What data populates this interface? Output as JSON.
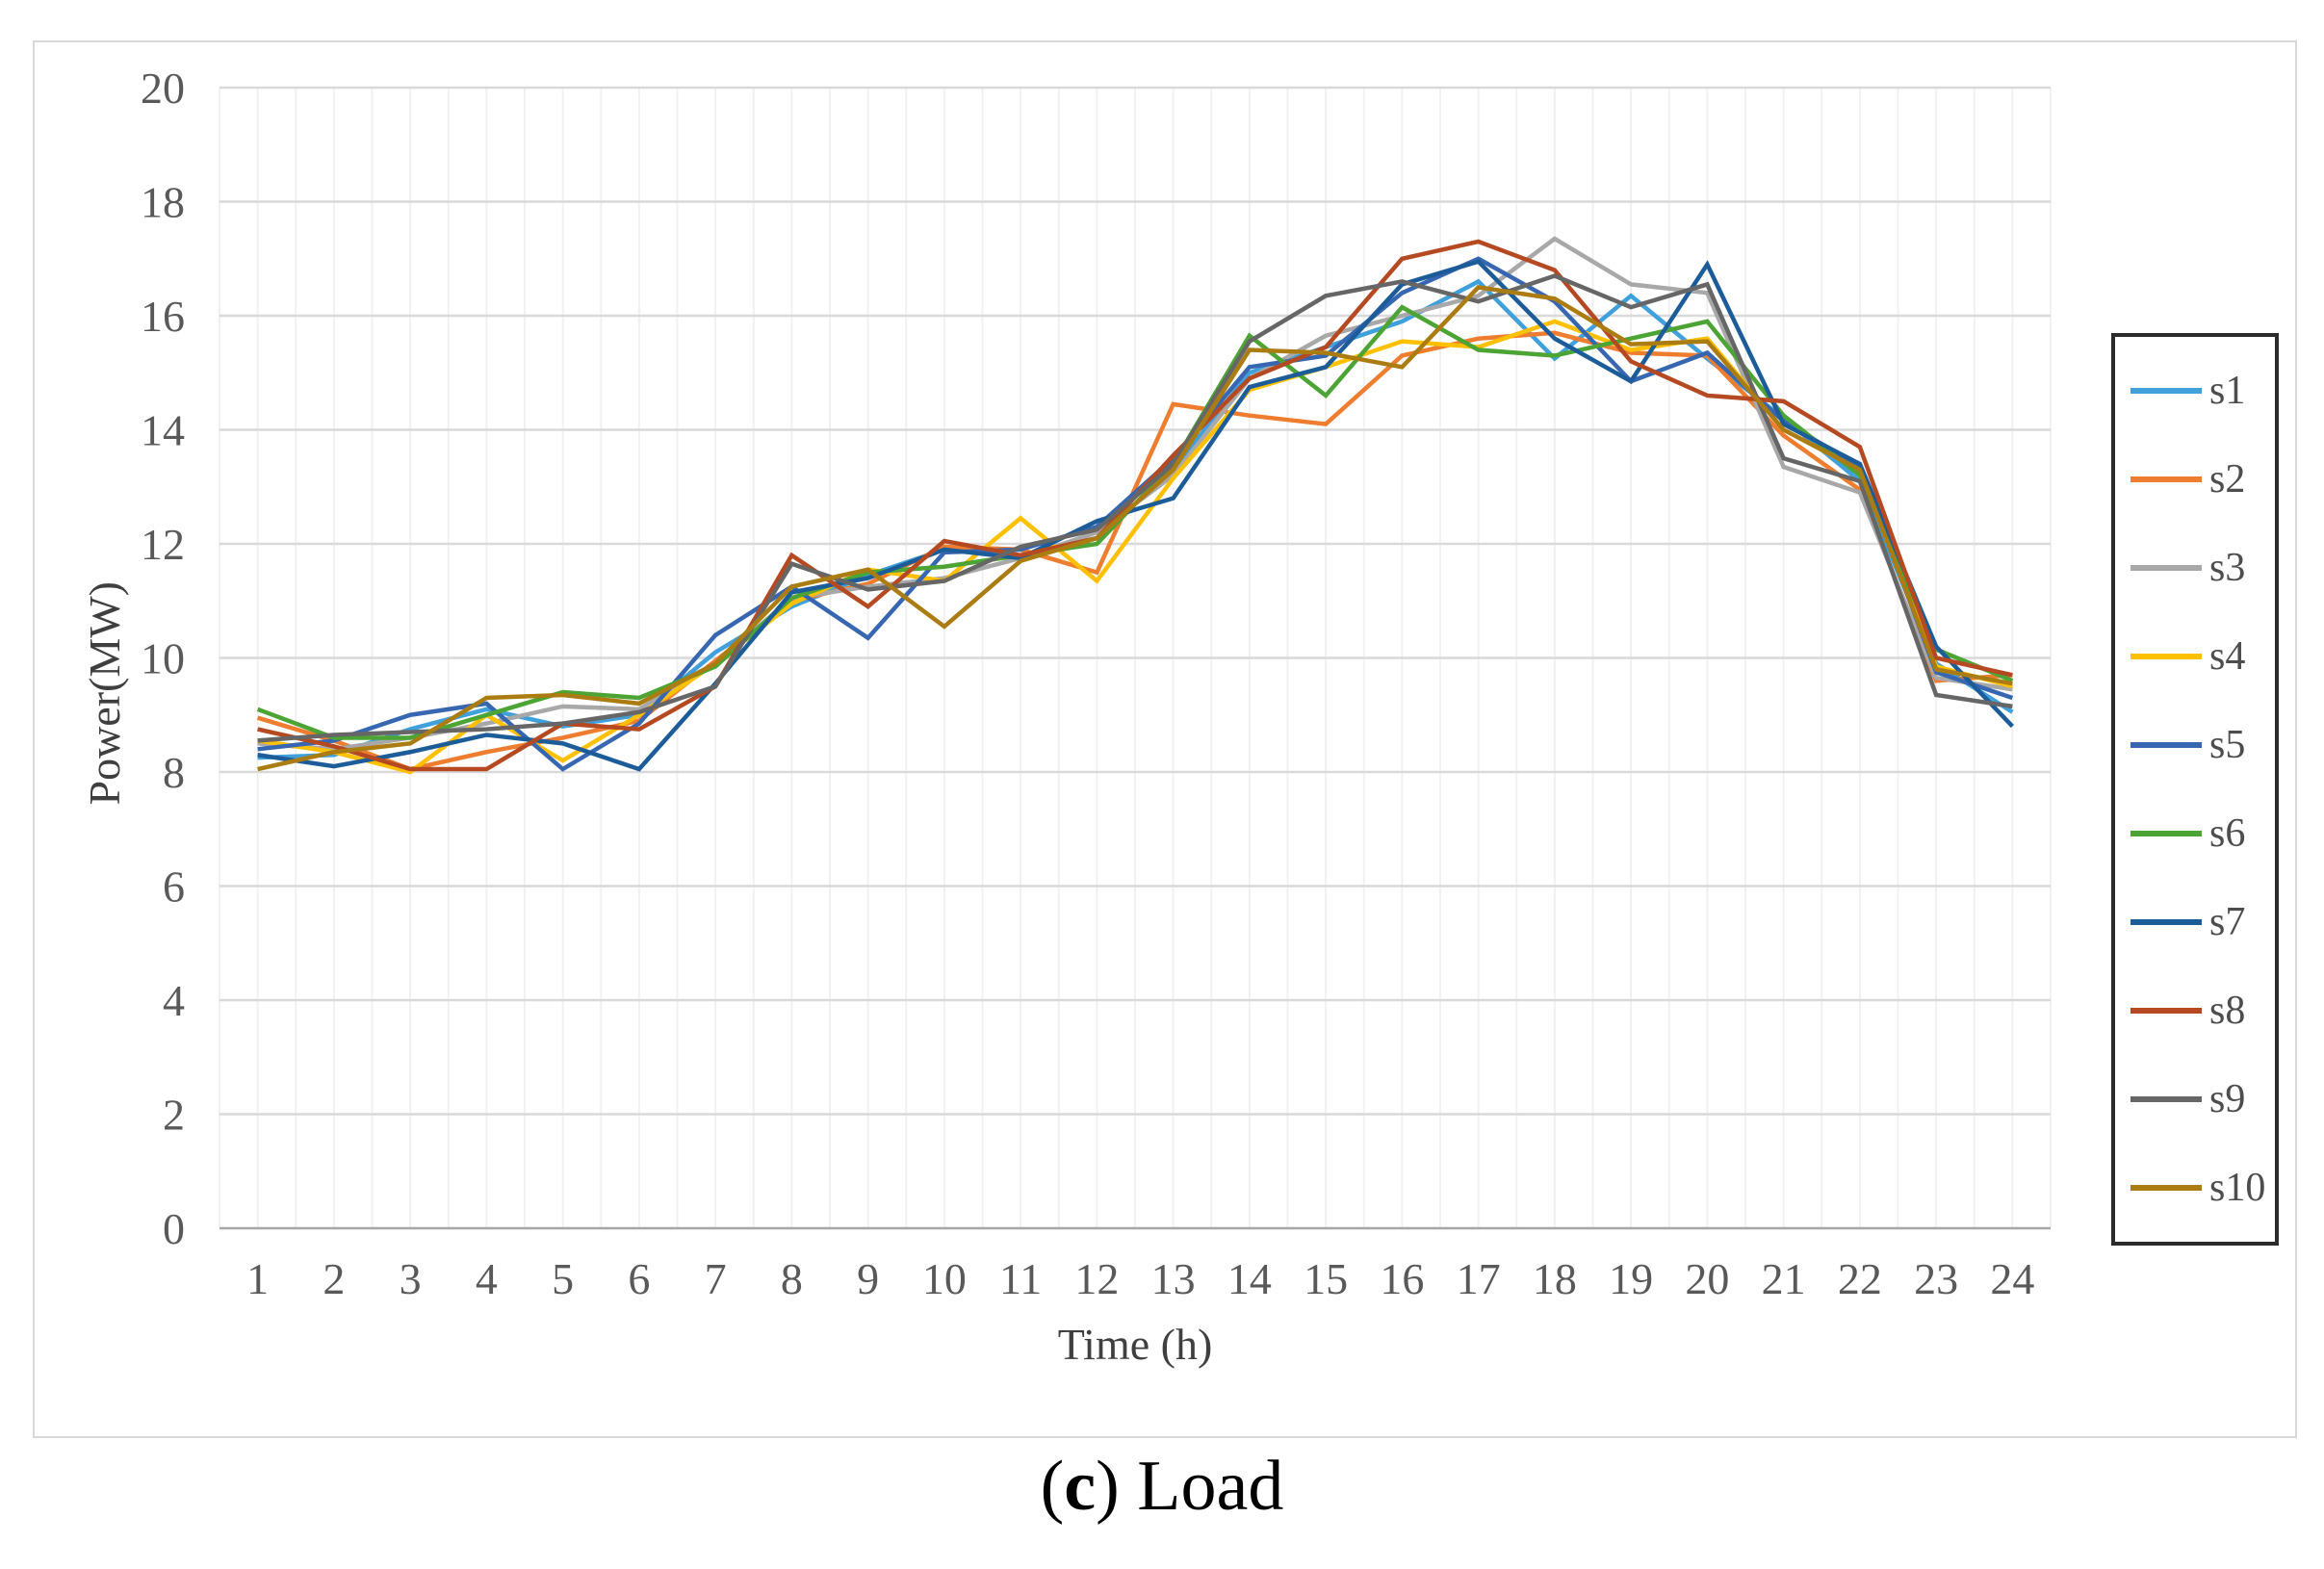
{
  "figure": {
    "caption": {
      "open": "(",
      "letter": "c",
      "rest": ") Load"
    }
  },
  "chart_data": {
    "type": "line",
    "title": "",
    "xlabel": "Time (h)",
    "ylabel": "Power(MW)",
    "x": [
      1,
      2,
      3,
      4,
      5,
      6,
      7,
      8,
      9,
      10,
      11,
      12,
      13,
      14,
      15,
      16,
      17,
      18,
      19,
      20,
      21,
      22,
      23,
      24
    ],
    "ylim": [
      0,
      20
    ],
    "ytick_step": 2,
    "grid": {
      "horizontal_major": true,
      "vertical_minor": true
    },
    "legend_position": "right",
    "colors": {
      "gridline_major": "#d9d9d9",
      "gridline_minor": "#f1f1f1",
      "axis_line": "#a6a6a6",
      "tick_label": "#595959",
      "axis_title": "#3f3f3f",
      "legend_border": "#2b2b2b"
    },
    "series": [
      {
        "name": "s1",
        "color": "#3FA0DC",
        "values": [
          8.25,
          8.3,
          8.75,
          9.1,
          8.8,
          9.0,
          10.1,
          10.9,
          11.45,
          11.9,
          11.8,
          12.1,
          13.3,
          15.0,
          15.45,
          15.9,
          16.6,
          15.25,
          16.35,
          15.25,
          14.2,
          13.1,
          9.9,
          9.05
        ]
      },
      {
        "name": "s2",
        "color": "#EF7D2F",
        "values": [
          8.95,
          8.55,
          8.05,
          8.35,
          8.6,
          8.9,
          9.95,
          11.0,
          11.3,
          11.95,
          11.9,
          11.5,
          14.45,
          14.25,
          14.1,
          15.3,
          15.6,
          15.7,
          15.35,
          15.3,
          13.9,
          12.95,
          9.6,
          9.7
        ]
      },
      {
        "name": "s3",
        "color": "#A8A8A8",
        "values": [
          8.5,
          8.4,
          8.6,
          8.85,
          9.15,
          9.1,
          9.9,
          11.05,
          11.25,
          11.4,
          11.75,
          12.2,
          13.2,
          14.9,
          15.65,
          16.0,
          16.35,
          17.35,
          16.55,
          16.4,
          13.35,
          12.9,
          9.65,
          9.45
        ]
      },
      {
        "name": "s4",
        "color": "#FFC000",
        "values": [
          8.55,
          8.35,
          8.0,
          9.0,
          8.2,
          9.0,
          9.9,
          10.95,
          11.55,
          11.35,
          12.45,
          11.35,
          13.15,
          14.7,
          15.1,
          15.55,
          15.45,
          15.9,
          15.4,
          15.6,
          14.0,
          13.3,
          9.85,
          9.5
        ]
      },
      {
        "name": "s5",
        "color": "#3867B1",
        "values": [
          8.4,
          8.55,
          9.0,
          9.2,
          8.05,
          8.85,
          10.4,
          11.25,
          10.35,
          11.85,
          11.9,
          12.3,
          13.5,
          15.1,
          15.3,
          16.4,
          17.0,
          16.25,
          14.85,
          15.35,
          14.15,
          13.35,
          9.75,
          9.3
        ]
      },
      {
        "name": "s6",
        "color": "#4CA434",
        "values": [
          9.1,
          8.6,
          8.6,
          9.0,
          9.4,
          9.3,
          9.85,
          11.05,
          11.5,
          11.6,
          11.8,
          12.0,
          13.4,
          15.65,
          14.6,
          16.15,
          15.4,
          15.3,
          15.6,
          15.9,
          14.25,
          13.2,
          10.15,
          9.6
        ]
      },
      {
        "name": "s7",
        "color": "#1C5D99",
        "values": [
          8.3,
          8.1,
          8.35,
          8.65,
          8.5,
          8.05,
          9.55,
          11.15,
          11.4,
          11.9,
          11.75,
          12.4,
          12.8,
          14.75,
          15.1,
          16.55,
          16.95,
          15.6,
          14.85,
          16.9,
          14.1,
          13.4,
          10.2,
          8.8
        ]
      },
      {
        "name": "s8",
        "color": "#B54A22",
        "values": [
          8.75,
          8.45,
          8.05,
          8.05,
          8.85,
          8.75,
          9.5,
          11.8,
          10.9,
          12.05,
          11.8,
          12.1,
          13.55,
          14.9,
          15.45,
          17.0,
          17.3,
          16.8,
          15.2,
          14.6,
          14.5,
          13.7,
          10.0,
          9.7
        ]
      },
      {
        "name": "s9",
        "color": "#666666",
        "values": [
          8.55,
          8.65,
          8.7,
          8.75,
          8.85,
          9.05,
          9.5,
          11.65,
          11.2,
          11.35,
          11.95,
          12.25,
          13.4,
          15.55,
          16.35,
          16.6,
          16.25,
          16.7,
          16.15,
          16.55,
          13.5,
          13.1,
          9.35,
          9.15
        ]
      },
      {
        "name": "s10",
        "color": "#AB7C12",
        "values": [
          8.05,
          8.35,
          8.5,
          9.3,
          9.35,
          9.2,
          9.9,
          11.25,
          11.55,
          10.55,
          11.7,
          12.1,
          13.3,
          15.4,
          15.35,
          15.1,
          16.5,
          16.3,
          15.5,
          15.55,
          14.0,
          13.3,
          9.8,
          9.55
        ]
      }
    ]
  }
}
